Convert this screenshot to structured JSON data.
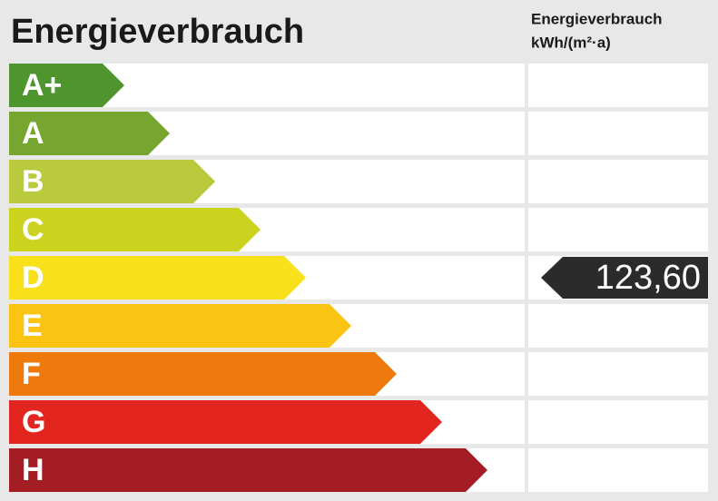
{
  "title": "Energieverbrauch",
  "column_header": [
    "Energieverbrauch",
    "kWh/(m²·a)"
  ],
  "classes": [
    {
      "label": "A+",
      "color": "#4f952d"
    },
    {
      "label": "A",
      "color": "#76a62f"
    },
    {
      "label": "B",
      "color": "#b9cb3c"
    },
    {
      "label": "C",
      "color": "#ccd31f"
    },
    {
      "label": "D",
      "color": "#f8e11a",
      "value": "123,60"
    },
    {
      "label": "E",
      "color": "#fbc412"
    },
    {
      "label": "F",
      "color": "#ee7a0e"
    },
    {
      "label": "G",
      "color": "#e2261f"
    },
    {
      "label": "H",
      "color": "#a41c24"
    }
  ]
}
